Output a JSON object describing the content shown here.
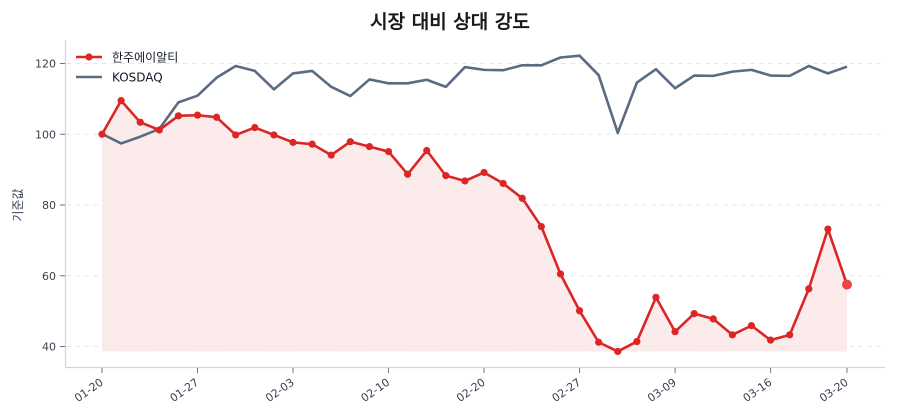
{
  "chart_data": {
    "type": "line",
    "title": "시장 대비 상대 강도",
    "xlabel": "",
    "ylabel": "기준값",
    "ylim": [
      36,
      126
    ],
    "yticks": [
      40,
      60,
      80,
      100,
      120
    ],
    "grid": {
      "y": true,
      "x": false,
      "style": "dashed"
    },
    "legend_position": "upper left",
    "xtick_labels": [
      {
        "index": 0,
        "label": "01-20"
      },
      {
        "index": 5,
        "label": "01-27"
      },
      {
        "index": 10,
        "label": "02-03"
      },
      {
        "index": 15,
        "label": "02-10"
      },
      {
        "index": 20,
        "label": "02-20"
      },
      {
        "index": 25,
        "label": "02-27"
      },
      {
        "index": 30,
        "label": "03-09"
      },
      {
        "index": 35,
        "label": "03-16"
      },
      {
        "index": 39,
        "label": "03-20"
      }
    ],
    "n_points": 40,
    "series": [
      {
        "name": "한주에이알티",
        "color": "#dc2626",
        "marker": "circle",
        "fill_below": true,
        "fill_color": "#fbe7e7",
        "highlight_last": true,
        "values": [
          100.0,
          109.5,
          103.4,
          101.2,
          105.2,
          105.4,
          104.8,
          99.8,
          101.9,
          99.8,
          97.7,
          97.2,
          94.1,
          97.9,
          96.5,
          95.1,
          88.7,
          95.4,
          88.3,
          86.8,
          89.2,
          86.1,
          81.9,
          73.9,
          60.5,
          50.1,
          41.2,
          38.6,
          41.4,
          53.9,
          44.2,
          49.3,
          47.8,
          43.3,
          45.9,
          41.8,
          43.3,
          56.3,
          73.2,
          57.5
        ]
      },
      {
        "name": "KOSDAQ",
        "color": "#5a6b82",
        "marker": "none",
        "values": [
          100.1,
          97.4,
          99.3,
          101.5,
          109.0,
          110.9,
          116.0,
          119.3,
          117.9,
          112.7,
          117.2,
          117.9,
          113.4,
          110.8,
          115.5,
          114.4,
          114.4,
          115.4,
          113.4,
          119.0,
          118.2,
          118.1,
          119.5,
          119.5,
          121.7,
          122.2,
          116.7,
          100.4,
          114.6,
          118.4,
          113.0,
          116.6,
          116.5,
          117.7,
          118.2,
          116.6,
          116.5,
          119.3,
          117.2,
          119.1
        ]
      }
    ]
  }
}
